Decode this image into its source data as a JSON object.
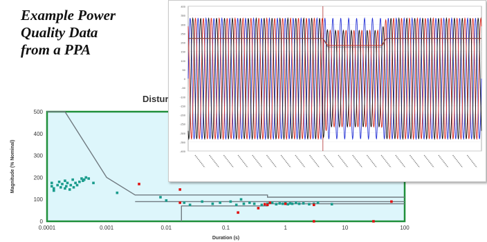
{
  "title_lines": [
    "Example Power",
    "Quality Data",
    "from a PPA"
  ],
  "colors": {
    "plot_bg": "#ddf6fb",
    "plot_border": "#1f8f3a",
    "curve": "#707a80",
    "teal_points": "#1a9c8c",
    "red_points": "#e01010",
    "phase_a": "#2633d6",
    "phase_b": "#d6261c",
    "phase_c": "#111111",
    "rms_line": "#c0392b"
  },
  "chart_data": [
    {
      "type": "scatter",
      "title": "Distur",
      "xlabel": "Duration (s)",
      "ylabel": "Magnitude (% Nominal)",
      "x_scale": "log",
      "xlim": [
        0.0001,
        100
      ],
      "ylim": [
        0,
        500
      ],
      "x_ticks": [
        "0.0001",
        "0.001",
        "0.01",
        "0.1",
        "1",
        "10",
        "100"
      ],
      "y_ticks": [
        "0",
        "100",
        "200",
        "300",
        "400",
        "500"
      ],
      "curves": [
        {
          "name": "",
          "points": [
            [
              0.0001,
              500
            ],
            [
              0.0002,
              500
            ],
            [
              0.001,
              200
            ],
            [
              0.003,
              120
            ],
            [
              0.5,
              120
            ],
            [
              0.5,
              110
            ],
            [
              100,
              110
            ]
          ]
        },
        {
          "name": "",
          "points": [
            [
              0.018,
              0
            ],
            [
              0.018,
              70
            ],
            [
              0.5,
              70
            ],
            [
              0.5,
              80
            ],
            [
              100,
              80
            ]
          ]
        },
        {
          "name": "",
          "points": [
            [
              0.003,
              90
            ],
            [
              0.5,
              90
            ],
            [
              100,
              90
            ]
          ]
        }
      ],
      "series": [
        {
          "name": "",
          "color_key": "teal_points",
          "points": [
            [
              0.00012,
              175
            ],
            [
              0.00012,
              160
            ],
            [
              0.00013,
              150
            ],
            [
              0.00013,
              140
            ],
            [
              0.00015,
              165
            ],
            [
              0.00016,
              180
            ],
            [
              0.00017,
              155
            ],
            [
              0.00018,
              170
            ],
            [
              0.0002,
              150
            ],
            [
              0.0002,
              185
            ],
            [
              0.00021,
              160
            ],
            [
              0.00022,
              175
            ],
            [
              0.00024,
              145
            ],
            [
              0.00025,
              165
            ],
            [
              0.00027,
              190
            ],
            [
              0.00028,
              155
            ],
            [
              0.0003,
              175
            ],
            [
              0.00032,
              165
            ],
            [
              0.00035,
              180
            ],
            [
              0.00038,
              195
            ],
            [
              0.0004,
              185
            ],
            [
              0.00042,
              190
            ],
            [
              0.00045,
              200
            ],
            [
              0.0005,
              195
            ],
            [
              0.0006,
              175
            ],
            [
              0.0015,
              130
            ],
            [
              0.008,
              110
            ],
            [
              0.01,
              95
            ],
            [
              0.02,
              85
            ],
            [
              0.025,
              75
            ],
            [
              0.04,
              90
            ],
            [
              0.06,
              80
            ],
            [
              0.08,
              85
            ],
            [
              0.12,
              90
            ],
            [
              0.15,
              75
            ],
            [
              0.18,
              100
            ],
            [
              0.2,
              80
            ],
            [
              0.25,
              85
            ],
            [
              0.3,
              80
            ],
            [
              0.4,
              75
            ],
            [
              0.5,
              80
            ],
            [
              0.6,
              85
            ],
            [
              0.7,
              78
            ],
            [
              0.8,
              82
            ],
            [
              0.9,
              80
            ],
            [
              1.0,
              85
            ],
            [
              1.1,
              78
            ],
            [
              1.2,
              82
            ],
            [
              1.3,
              80
            ],
            [
              1.5,
              85
            ],
            [
              1.7,
              80
            ],
            [
              2.0,
              82
            ],
            [
              2.5,
              78
            ],
            [
              3.0,
              80
            ],
            [
              3.5,
              85
            ],
            [
              6.0,
              78
            ]
          ]
        },
        {
          "name": "",
          "color_key": "red_points",
          "points": [
            [
              0.0035,
              170
            ],
            [
              0.017,
              145
            ],
            [
              0.017,
              85
            ],
            [
              0.16,
              40
            ],
            [
              0.35,
              60
            ],
            [
              0.45,
              78
            ],
            [
              0.5,
              75
            ],
            [
              0.55,
              85
            ],
            [
              1.0,
              80
            ],
            [
              3.0,
              75
            ],
            [
              3.0,
              0
            ],
            [
              30,
              0
            ],
            [
              60,
              90
            ]
          ]
        }
      ]
    },
    {
      "type": "line",
      "title": "",
      "description_key": "waveform",
      "cycles": 37,
      "ylim": [
        -360,
        360
      ],
      "y_ticks": [
        "400",
        "350",
        "300",
        "250",
        "200",
        "150",
        "100",
        "50",
        "0",
        "-50",
        "-100",
        "-150",
        "-200",
        "-250",
        "-300",
        "-350",
        "-400"
      ],
      "event_window_cycles": [
        17,
        25
      ],
      "sag_depth_fraction": 0.8,
      "rms_level": 200,
      "rms_sag_level": 165
    }
  ]
}
